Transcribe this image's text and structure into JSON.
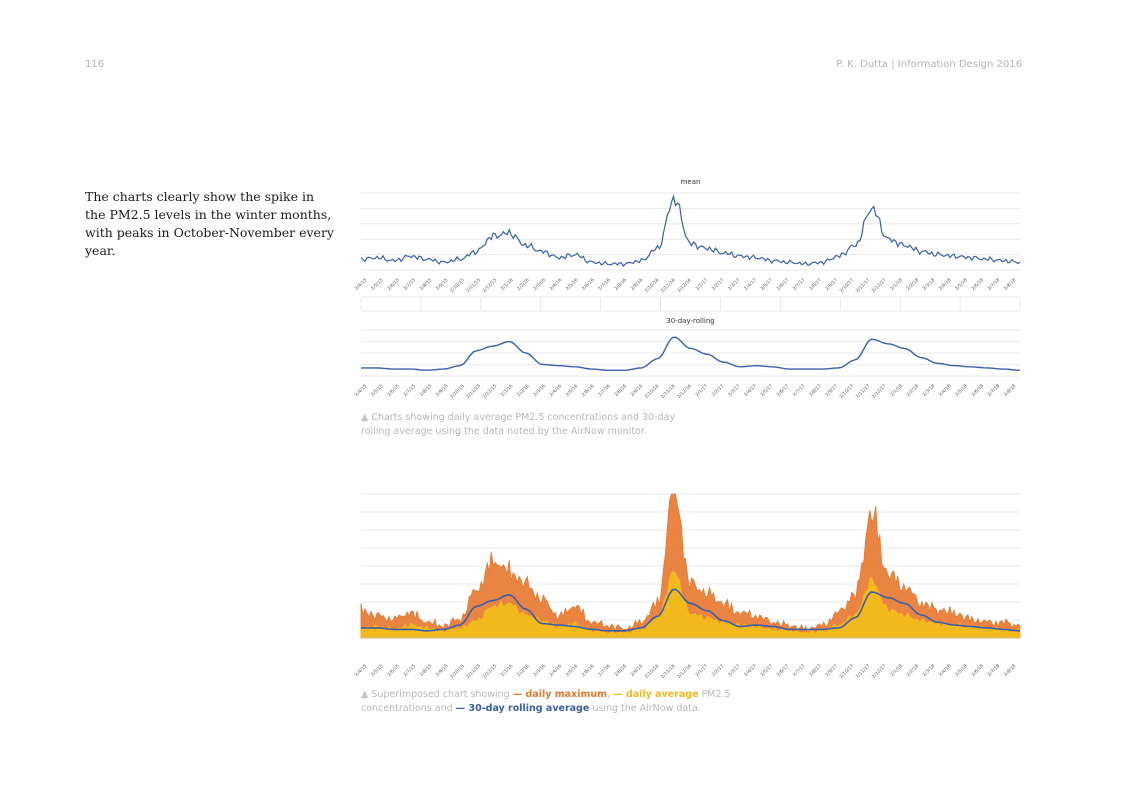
{
  "header": {
    "page_number": "116",
    "author_line": "P. K. Dutta | Information Design 2016"
  },
  "intro_text": "The charts clearly show the spike in the PM2.5 levels in the winter months, with peaks in October-November every year.",
  "caption1": {
    "marker": "▲",
    "text": "Charts showing daily average PM2.5 concentrations and 30-day rolling average using the data noted by the AirNow monitor."
  },
  "caption2": {
    "marker": "▲",
    "t1": "Superimposed chart showing ",
    "k1": "— daily maximum",
    "t2": ", ",
    "k2": "— daily average",
    "t3": " PM2.5 concentrations and ",
    "k3": "— 30-day rolling average",
    "t4": " using the AirNow data."
  },
  "colors": {
    "mean": "#3b5fa8",
    "rolling": "#3b5fa8",
    "daily_max": "#e8772e",
    "daily_avg": "#f2b91d",
    "grid": "#e3e3e3",
    "tick_text": "#555555"
  },
  "chart_data": [
    {
      "type": "line",
      "title": "mean",
      "x_ticks": [
        "2/4/15",
        "2/5/15",
        "2/6/15",
        "2/7/15",
        "2/8/15",
        "2/9/15",
        "2/10/15",
        "2/11/15",
        "2/12/15",
        "2/1/16",
        "2/2/16",
        "2/3/16",
        "2/4/16",
        "2/5/16",
        "2/6/16",
        "2/7/16",
        "2/8/16",
        "2/9/16",
        "2/10/16",
        "2/11/16",
        "2/12/16",
        "2/1/17",
        "2/2/17",
        "2/3/17",
        "2/4/17",
        "2/5/17",
        "2/6/17",
        "2/7/17",
        "2/8/17",
        "2/9/17",
        "2/10/17",
        "2/11/17",
        "2/12/17",
        "2/1/18",
        "2/2/18",
        "2/3/18",
        "2/4/18",
        "2/5/18",
        "2/6/18",
        "2/7/18",
        "2/8/18"
      ],
      "series": [
        {
          "values": [
            7,
            8,
            6,
            9,
            7,
            5,
            7,
            12,
            22,
            24,
            16,
            12,
            8,
            10,
            5,
            4,
            4,
            6,
            14,
            46,
            17,
            14,
            11,
            9,
            8,
            6,
            5,
            4,
            5,
            9,
            16,
            40,
            20,
            16,
            12,
            10,
            9,
            8,
            7,
            6,
            5
          ]
        }
      ],
      "grid": true,
      "ylim": [
        0,
        50
      ]
    },
    {
      "type": "line",
      "title": "30-day-rolling",
      "x_ticks": [
        "2/4/15",
        "2/5/15",
        "2/6/15",
        "2/7/15",
        "2/8/15",
        "2/9/15",
        "2/10/15",
        "2/11/15",
        "2/12/15",
        "2/1/16",
        "2/2/16",
        "2/3/16",
        "2/4/16",
        "2/5/16",
        "2/6/16",
        "2/7/16",
        "2/8/16",
        "2/9/16",
        "2/10/16",
        "2/11/16",
        "2/12/16",
        "2/1/17",
        "2/2/17",
        "2/3/17",
        "2/4/17",
        "2/5/17",
        "2/6/17",
        "2/7/17",
        "2/8/17",
        "2/9/17",
        "2/10/17",
        "2/11/17",
        "2/12/17",
        "2/1/18",
        "2/2/18",
        "2/3/18",
        "2/4/18",
        "2/5/18",
        "2/6/18",
        "2/7/18",
        "2/8/18"
      ],
      "series": [
        {
          "values": [
            7,
            7,
            6,
            6,
            5,
            6,
            9,
            22,
            26,
            30,
            20,
            10,
            9,
            8,
            6,
            5,
            5,
            7,
            15,
            34,
            24,
            19,
            12,
            8,
            9,
            8,
            6,
            6,
            6,
            7,
            14,
            32,
            28,
            24,
            16,
            11,
            9,
            8,
            7,
            6,
            5
          ]
        }
      ],
      "grid": true,
      "ylim": [
        0,
        40
      ]
    },
    {
      "type": "area",
      "x_ticks": [
        "2/4/15",
        "2/5/15",
        "2/6/15",
        "2/7/15",
        "2/8/15",
        "2/9/15",
        "2/10/15",
        "2/11/15",
        "2/12/15",
        "2/1/16",
        "2/2/16",
        "2/3/16",
        "2/4/16",
        "2/5/16",
        "2/6/16",
        "2/7/16",
        "2/8/16",
        "2/9/16",
        "2/10/16",
        "2/11/16",
        "2/12/16",
        "2/1/17",
        "2/2/17",
        "2/3/17",
        "2/4/17",
        "2/5/17",
        "2/6/17",
        "2/7/17",
        "2/8/17",
        "2/9/17",
        "2/10/17",
        "2/11/17",
        "2/12/17",
        "2/1/18",
        "2/2/18",
        "2/3/18",
        "2/4/18",
        "2/5/18",
        "2/6/18",
        "2/7/18",
        "2/8/18"
      ],
      "series": [
        {
          "name": "daily maximum",
          "values": [
            18,
            14,
            12,
            16,
            10,
            8,
            12,
            30,
            48,
            42,
            34,
            24,
            14,
            20,
            10,
            8,
            6,
            10,
            22,
            95,
            34,
            28,
            22,
            16,
            14,
            10,
            8,
            6,
            8,
            16,
            28,
            78,
            40,
            32,
            22,
            18,
            16,
            12,
            10,
            10,
            8
          ]
        },
        {
          "name": "daily average",
          "values": [
            7,
            8,
            6,
            9,
            7,
            5,
            7,
            12,
            22,
            24,
            16,
            12,
            8,
            10,
            5,
            4,
            4,
            6,
            14,
            46,
            17,
            14,
            11,
            9,
            8,
            6,
            5,
            4,
            5,
            9,
            16,
            40,
            20,
            16,
            12,
            10,
            9,
            8,
            7,
            6,
            5
          ]
        },
        {
          "name": "30-day rolling average",
          "values": [
            7,
            7,
            6,
            6,
            5,
            6,
            9,
            22,
            26,
            30,
            20,
            10,
            9,
            8,
            6,
            5,
            5,
            7,
            15,
            34,
            24,
            19,
            12,
            8,
            9,
            8,
            6,
            6,
            6,
            7,
            14,
            32,
            28,
            24,
            16,
            11,
            9,
            8,
            7,
            6,
            5
          ]
        }
      ],
      "grid": true,
      "ylim": [
        0,
        100
      ]
    }
  ]
}
